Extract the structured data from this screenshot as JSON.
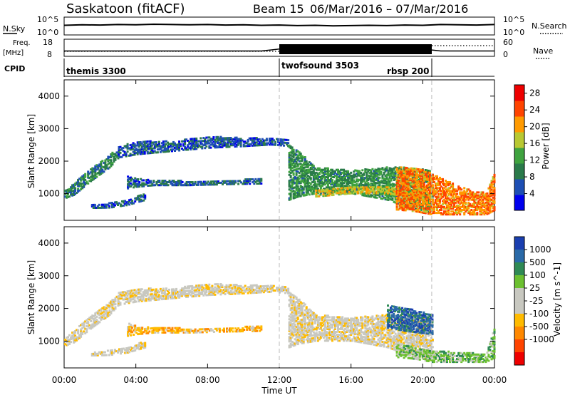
{
  "header": {
    "station": "Saskatoon (fitACF)",
    "beam": "Beam 15",
    "date_range": "06/Mar/2016 – 07/Mar/2016"
  },
  "chart_data": [
    {
      "type": "line",
      "panel": "noise",
      "left_label": "N.Sky",
      "right_label": "N.Search",
      "left_ticks": [
        "10^5",
        "10^0"
      ],
      "right_ticks": [
        "10^5",
        "10^0"
      ],
      "series": [
        {
          "values": [
            3.2,
            3.4,
            3.3,
            3.5,
            3.4,
            3.6,
            3.5,
            3.4,
            3.5,
            3.3,
            3.4,
            3.2,
            3.3,
            3.1,
            3.2,
            3.0,
            3.1,
            3.2,
            3.1,
            3.3,
            3.2,
            3.5,
            3.4,
            3.3,
            3.5
          ]
        }
      ]
    },
    {
      "type": "line",
      "panel": "frequency",
      "left_label": "Freq.",
      "left_unit": "[MHz]",
      "right_label": "Nave",
      "left_ticks": [
        "18",
        "8"
      ],
      "right_ticks": [
        "60",
        "0"
      ],
      "series": [
        {
          "values": [
            10.5,
            10.5,
            10.5,
            10.5,
            10.5,
            10.5,
            10.5,
            10.5,
            10.5,
            10.5,
            10.5,
            10.5,
            12,
            12,
            12,
            12,
            12,
            12,
            12,
            12,
            12,
            10.5,
            10.5,
            10.5,
            10.5
          ]
        }
      ]
    },
    {
      "type": "table",
      "panel": "cpid",
      "label": "CPID",
      "segments": [
        {
          "name": "themis 3300",
          "start": 0,
          "end": 12
        },
        {
          "name": "twofsound 3503",
          "start": 12,
          "end": 20.5
        },
        {
          "name": "rbsp 200",
          "start": 12,
          "end": 20.5
        }
      ]
    },
    {
      "type": "heatmap",
      "panel": "power",
      "ylabel": "Slant Range [km]",
      "xlim": [
        0,
        24
      ],
      "ylim": [
        180,
        4500
      ],
      "yticks": [
        1000,
        2000,
        3000,
        4000
      ],
      "colorbar": {
        "label": "Power [dB]",
        "ticks": [
          "4",
          "8",
          "12",
          "16",
          "20",
          "24",
          "28"
        ],
        "range": [
          0,
          30
        ]
      },
      "colorscale": [
        "#0000ee",
        "#1e4fb4",
        "#2a7a4a",
        "#3fa33f",
        "#b8c832",
        "#ff9a00",
        "#ff4400",
        "#ee0000"
      ],
      "bands": [
        {
          "x": [
            0,
            0.5,
            1.5,
            2.5,
            3.0
          ],
          "lo": [
            850,
            950,
            1400,
            1800,
            2100
          ],
          "hi": [
            1100,
            1300,
            1800,
            2200,
            2400
          ],
          "v": 9
        },
        {
          "x": [
            1.5,
            2.5,
            3.5,
            4.5
          ],
          "lo": [
            550,
            560,
            640,
            800
          ],
          "hi": [
            650,
            700,
            800,
            1000
          ],
          "v": 6
        },
        {
          "x": [
            3.5,
            4.0,
            5.0,
            7.0,
            9.0,
            11.0
          ],
          "lo": [
            1150,
            1200,
            1250,
            1250,
            1280,
            1300
          ],
          "hi": [
            1550,
            1450,
            1400,
            1380,
            1400,
            1450
          ],
          "v": 7
        },
        {
          "x": [
            3.0,
            4.0,
            6.0,
            8.0,
            10.0,
            11.5,
            12.5
          ],
          "lo": [
            2100,
            2200,
            2300,
            2400,
            2450,
            2500,
            2450
          ],
          "hi": [
            2500,
            2600,
            2600,
            2750,
            2700,
            2700,
            2650
          ],
          "v": 6
        },
        {
          "x": [
            12.5,
            13.0,
            14.0,
            16.0,
            18.0,
            19.0,
            20.5
          ],
          "lo": [
            800,
            900,
            1000,
            1000,
            800,
            600,
            400
          ],
          "hi": [
            2500,
            2300,
            1800,
            1700,
            1800,
            1800,
            1700
          ],
          "v": 11
        },
        {
          "x": [
            14.0,
            16.0,
            18.0,
            20.0
          ],
          "lo": [
            900,
            1000,
            1000,
            800
          ],
          "hi": [
            1100,
            1200,
            1200,
            1000
          ],
          "v": 18
        },
        {
          "x": [
            18.5,
            19.5,
            20.5,
            22.0,
            23.5,
            24.0
          ],
          "lo": [
            500,
            450,
            350,
            350,
            350,
            500
          ],
          "hi": [
            1800,
            1800,
            1600,
            1200,
            1000,
            1700
          ],
          "v": 22
        }
      ]
    },
    {
      "type": "heatmap",
      "panel": "velocity",
      "xlabel": "Time UT",
      "ylabel": "Slant Range [km]",
      "xlim": [
        0,
        24
      ],
      "ylim": [
        180,
        4500
      ],
      "xticks": [
        "00:00",
        "04:00",
        "08:00",
        "12:00",
        "16:00",
        "20:00",
        "00:00"
      ],
      "yticks": [
        1000,
        2000,
        3000,
        4000
      ],
      "colorbar": {
        "label": "Velocity [m s^-1]",
        "ticks": [
          "1000",
          "500",
          "100",
          "25",
          "-25",
          "-100",
          "-500",
          "-1000"
        ]
      },
      "colorscale": [
        "#ee0000",
        "#ff4400",
        "#ff8800",
        "#ffbb00",
        "#c8c8c0",
        "#c8c8c0",
        "#6cc030",
        "#2f8a55",
        "#2a6aa8",
        "#1a3fb0"
      ],
      "bands": [
        {
          "x": [
            0,
            0.5,
            1.5,
            2.5,
            3.0
          ],
          "lo": [
            850,
            950,
            1400,
            1800,
            2100
          ],
          "hi": [
            1100,
            1300,
            1800,
            2200,
            2400
          ],
          "v": 4
        },
        {
          "x": [
            1.5,
            2.5,
            3.5,
            4.5
          ],
          "lo": [
            550,
            560,
            640,
            800
          ],
          "hi": [
            650,
            700,
            800,
            1000
          ],
          "v": 4
        },
        {
          "x": [
            3.5,
            4.0,
            5.0,
            7.0,
            9.0,
            11.0
          ],
          "lo": [
            1150,
            1200,
            1250,
            1250,
            1280,
            1300
          ],
          "hi": [
            1550,
            1450,
            1400,
            1380,
            1400,
            1450
          ],
          "v": 3
        },
        {
          "x": [
            3.0,
            4.0,
            6.0,
            8.0,
            10.0,
            11.5,
            12.5
          ],
          "lo": [
            2100,
            2200,
            2300,
            2400,
            2450,
            2500,
            2450
          ],
          "hi": [
            2500,
            2600,
            2600,
            2750,
            2700,
            2700,
            2650
          ],
          "v": 4
        },
        {
          "x": [
            12.5,
            13.0,
            14.0,
            16.0,
            18.0,
            19.0,
            20.5
          ],
          "lo": [
            800,
            900,
            1000,
            1000,
            800,
            600,
            400
          ],
          "hi": [
            2500,
            2300,
            1800,
            1700,
            1800,
            1800,
            1700
          ],
          "v": 4
        },
        {
          "x": [
            18.0,
            19.0,
            20.5
          ],
          "lo": [
            1400,
            1300,
            1200
          ],
          "hi": [
            2100,
            2000,
            1800
          ],
          "v": 8
        },
        {
          "x": [
            18.5,
            19.5,
            20.5,
            22.0,
            23.5,
            24.0
          ],
          "lo": [
            500,
            450,
            350,
            350,
            350,
            500
          ],
          "hi": [
            900,
            800,
            700,
            650,
            600,
            1500
          ],
          "v": 6
        }
      ]
    }
  ]
}
